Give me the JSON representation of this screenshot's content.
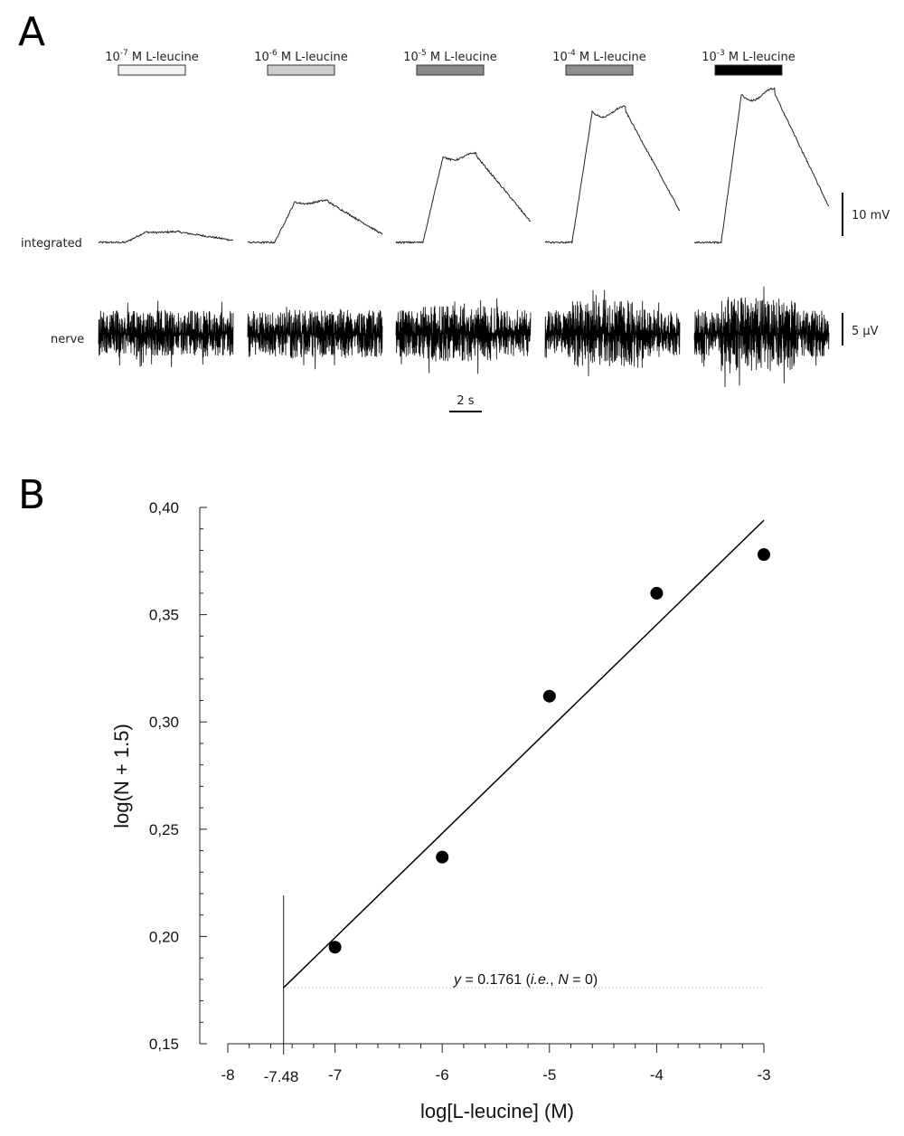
{
  "panels": {
    "a_letter": "A",
    "b_letter": "B"
  },
  "panel_a": {
    "stimuli": [
      {
        "base": "10",
        "exp": "-7",
        "rest": " M L-leucine",
        "fill": "#f2f2f2",
        "level": 0.12
      },
      {
        "base": "10",
        "exp": "-6",
        "rest": " M L-leucine",
        "fill": "#cccccc",
        "level": 0.47
      },
      {
        "base": "10",
        "exp": "-5",
        "rest": " M L-leucine",
        "fill": "#8a8a8a",
        "level": 1.0
      },
      {
        "base": "10",
        "exp": "-4",
        "rest": " M L-leucine",
        "fill": "#8e8e8e",
        "level": 1.52
      },
      {
        "base": "10",
        "exp": "-3",
        "rest": " M L-leucine",
        "fill": "#000000",
        "level": 1.72
      }
    ],
    "row_labels": {
      "integrated": "integrated",
      "nerve": "nerve"
    },
    "scale_bars": {
      "integrated": "10 mV",
      "nerve": "5 µV",
      "time": "2 s"
    }
  },
  "chart_data": {
    "type": "scatter",
    "title": "",
    "xlabel": "log[L-leucine] (M)",
    "ylabel": "log(N + 1.5)",
    "xlim": [
      -8,
      -3
    ],
    "ylim": [
      0.15,
      0.4
    ],
    "xticks": [
      -8,
      -7,
      -6,
      -5,
      -4,
      -3
    ],
    "yticks": [
      0.15,
      0.2,
      0.25,
      0.3,
      0.35,
      0.4
    ],
    "ytick_labels": [
      "0,15",
      "0,20",
      "0,25",
      "0,30",
      "0,35",
      "0,40"
    ],
    "points": [
      {
        "x": -7,
        "y": 0.195
      },
      {
        "x": -6,
        "y": 0.237
      },
      {
        "x": -5,
        "y": 0.312
      },
      {
        "x": -4,
        "y": 0.36
      },
      {
        "x": -3,
        "y": 0.378
      }
    ],
    "fit_line": {
      "x": [
        -7.48,
        -3
      ],
      "y": [
        0.1761,
        0.394
      ]
    },
    "threshold": {
      "x": -7.48,
      "label": "-7.48"
    },
    "baseline": {
      "y": 0.1761,
      "label": {
        "pre": "y",
        "a": " = 0.1761 (",
        "ie": "i.e.",
        "b": ", ",
        "n": "N",
        "c": " = 0)"
      }
    },
    "grid": false
  }
}
